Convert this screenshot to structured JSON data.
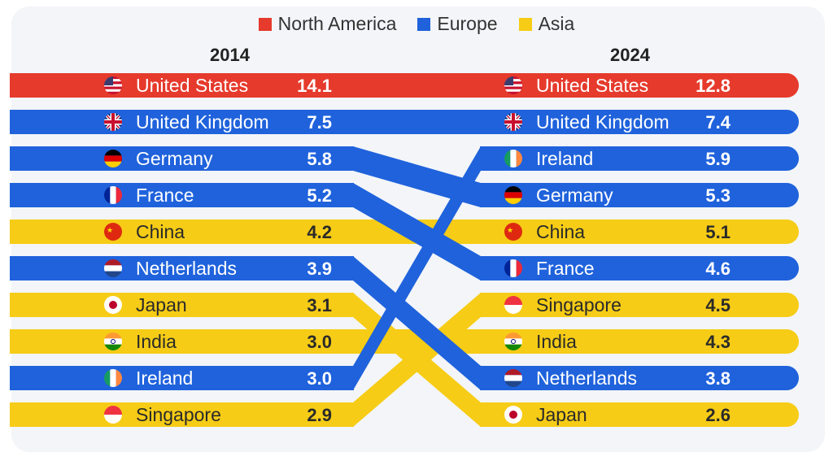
{
  "legend": [
    {
      "label": "North America",
      "color": "#e53a2c"
    },
    {
      "label": "Europe",
      "color": "#1f62dc"
    },
    {
      "label": "Asia",
      "color": "#f6cc16"
    }
  ],
  "chart_data": {
    "type": "bump",
    "columns": [
      "2014",
      "2024"
    ],
    "region_colors": {
      "North America": "#e53a2c",
      "Europe": "#1f62dc",
      "Asia": "#f6cc16"
    },
    "left": [
      {
        "country": "United States",
        "region": "North America",
        "flag": "us",
        "value": 14.1
      },
      {
        "country": "United Kingdom",
        "region": "Europe",
        "flag": "uk",
        "value": 7.5
      },
      {
        "country": "Germany",
        "region": "Europe",
        "flag": "de",
        "value": 5.8
      },
      {
        "country": "France",
        "region": "Europe",
        "flag": "fr",
        "value": 5.2
      },
      {
        "country": "China",
        "region": "Asia",
        "flag": "cn",
        "value": 4.2
      },
      {
        "country": "Netherlands",
        "region": "Europe",
        "flag": "nl",
        "value": 3.9
      },
      {
        "country": "Japan",
        "region": "Asia",
        "flag": "jp",
        "value": 3.1
      },
      {
        "country": "India",
        "region": "Asia",
        "flag": "in",
        "value": 3.0
      },
      {
        "country": "Ireland",
        "region": "Europe",
        "flag": "ie",
        "value": 3.0
      },
      {
        "country": "Singapore",
        "region": "Asia",
        "flag": "sg",
        "value": 2.9
      }
    ],
    "right": [
      {
        "country": "United States",
        "region": "North America",
        "flag": "us",
        "value": 12.8
      },
      {
        "country": "United Kingdom",
        "region": "Europe",
        "flag": "uk",
        "value": 7.4
      },
      {
        "country": "Ireland",
        "region": "Europe",
        "flag": "ie",
        "value": 5.9
      },
      {
        "country": "Germany",
        "region": "Europe",
        "flag": "de",
        "value": 5.3
      },
      {
        "country": "China",
        "region": "Asia",
        "flag": "cn",
        "value": 5.1
      },
      {
        "country": "France",
        "region": "Europe",
        "flag": "fr",
        "value": 4.6
      },
      {
        "country": "Singapore",
        "region": "Asia",
        "flag": "sg",
        "value": 4.5
      },
      {
        "country": "India",
        "region": "Asia",
        "flag": "in",
        "value": 4.3
      },
      {
        "country": "Netherlands",
        "region": "Europe",
        "flag": "nl",
        "value": 3.8
      },
      {
        "country": "Japan",
        "region": "Asia",
        "flag": "jp",
        "value": 2.6
      }
    ]
  }
}
